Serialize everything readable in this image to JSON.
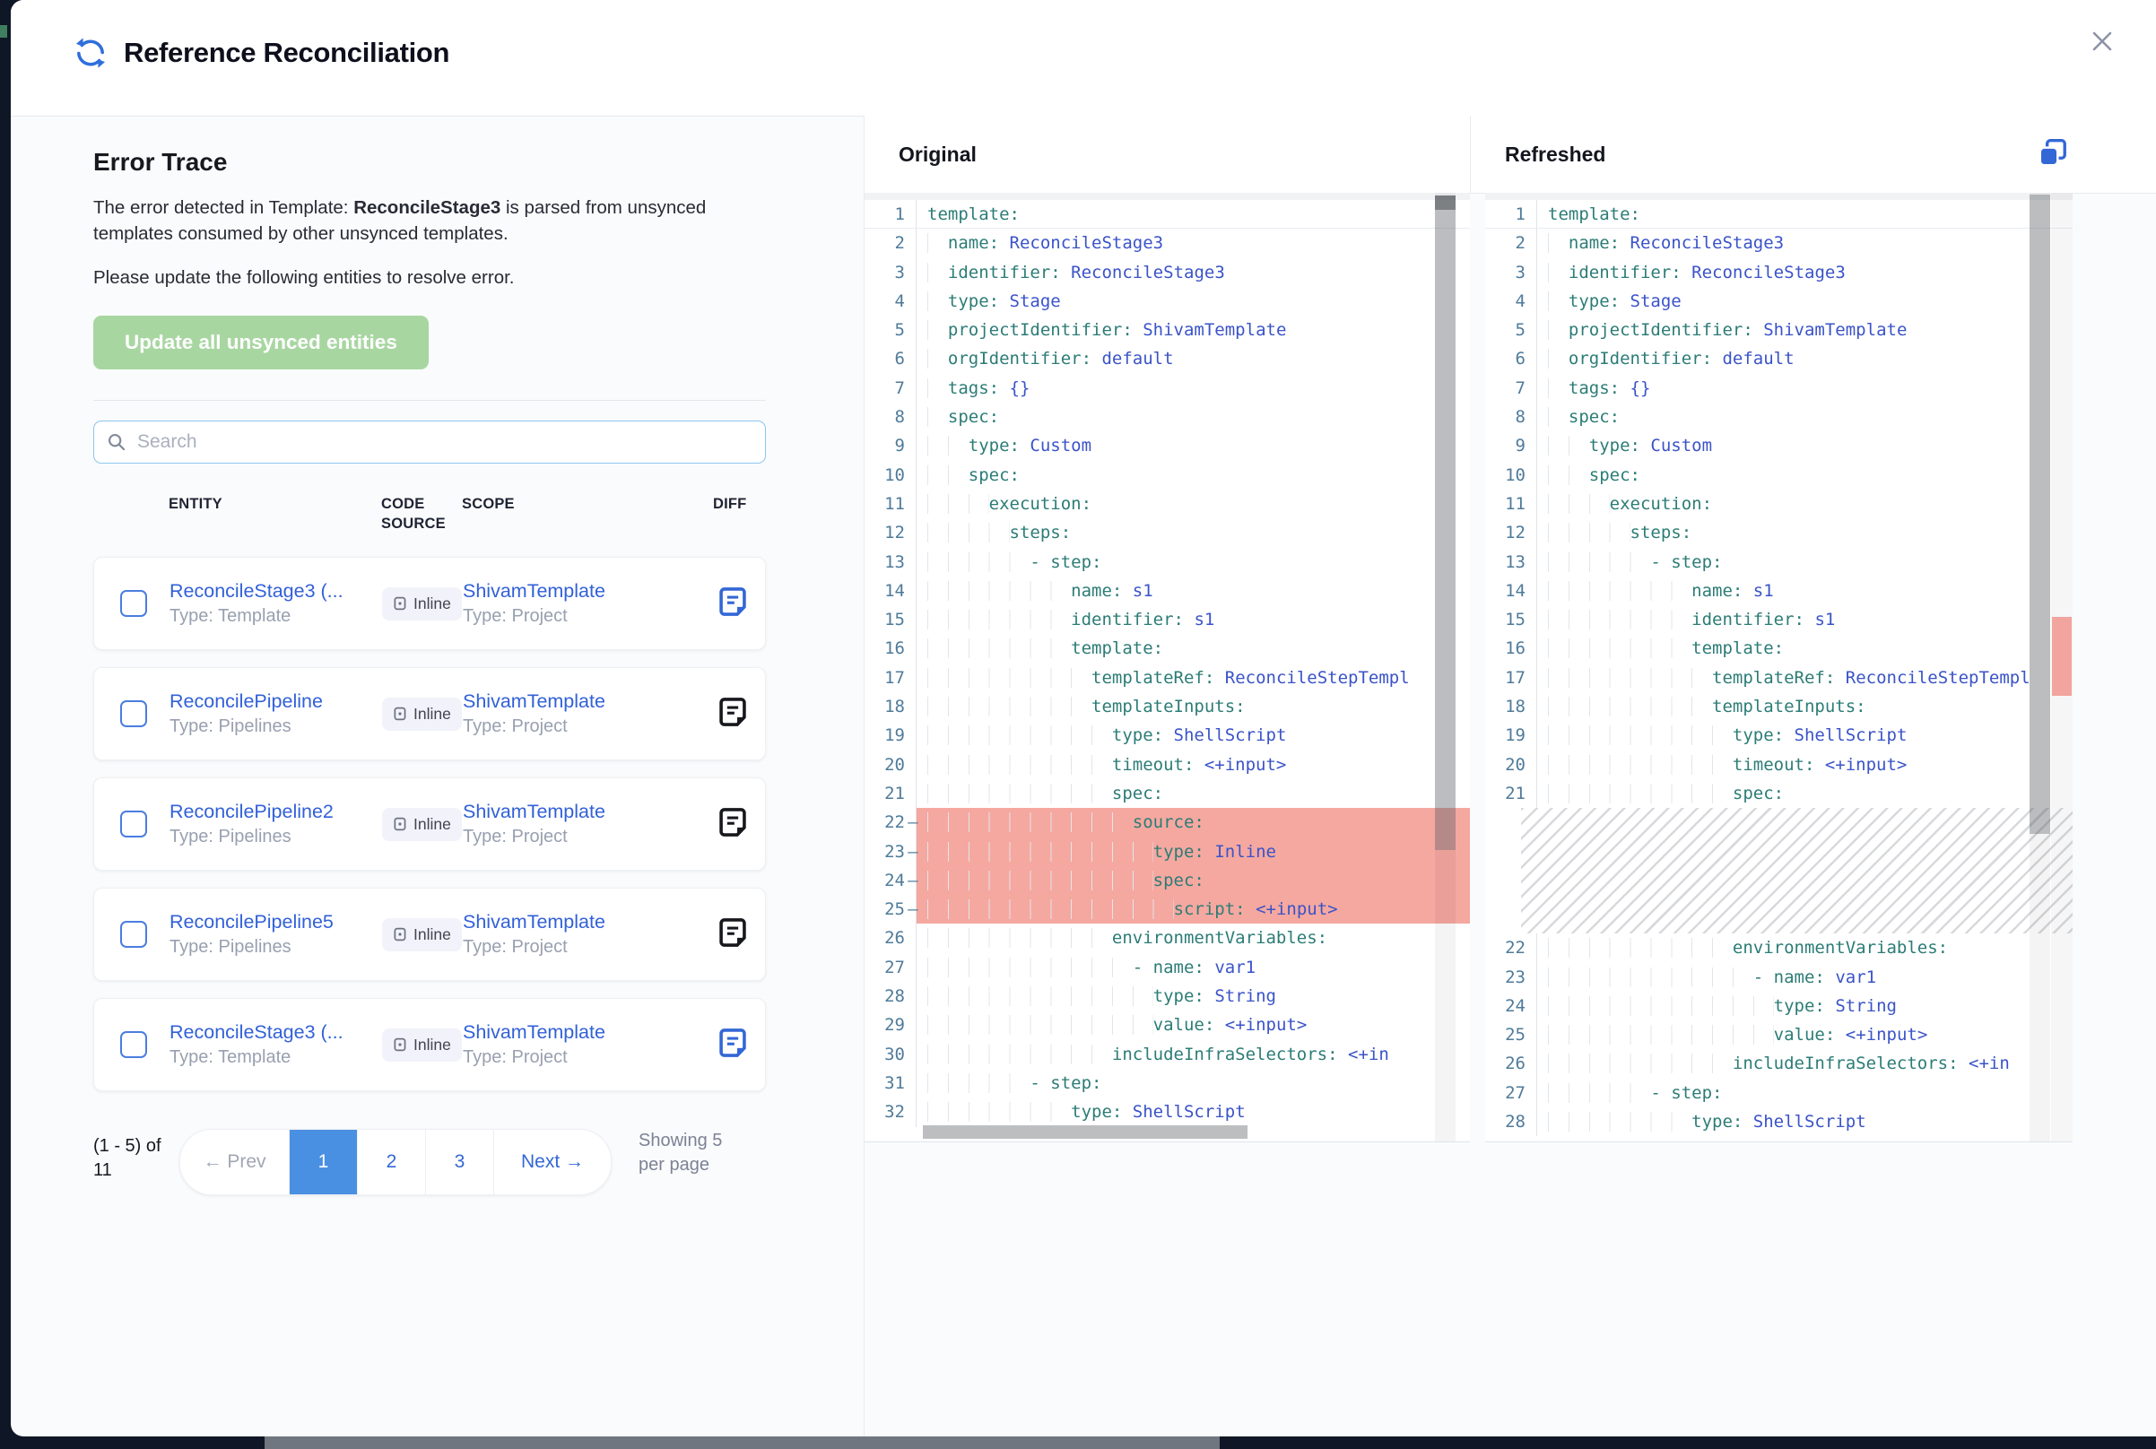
{
  "window": {
    "title": "Reference Reconciliation"
  },
  "error_trace": {
    "title": "Error Trace",
    "description_prefix": "The error detected in Template: ",
    "description_bold": "ReconcileStage3",
    "description_suffix": " is parsed from unsynced templates consumed by other unsynced templates.",
    "description_line2": "Please update the following entities to resolve error.",
    "update_button_label": "Update all unsynced entities"
  },
  "search": {
    "placeholder": "Search"
  },
  "table": {
    "headers": [
      "ENTITY",
      "CODE SOURCE",
      "SCOPE",
      "DIFF"
    ],
    "rows": [
      {
        "entity": "ReconcileStage3 (...",
        "entity_type": "Type: Template",
        "code_source": "Inline",
        "scope": "ShivamTemplate",
        "scope_type": "Type: Project",
        "diff_color": "blue"
      },
      {
        "entity": "ReconcilePipeline",
        "entity_type": "Type: Pipelines",
        "code_source": "Inline",
        "scope": "ShivamTemplate",
        "scope_type": "Type: Project",
        "diff_color": "dark"
      },
      {
        "entity": "ReconcilePipeline2",
        "entity_type": "Type: Pipelines",
        "code_source": "Inline",
        "scope": "ShivamTemplate",
        "scope_type": "Type: Project",
        "diff_color": "dark"
      },
      {
        "entity": "ReconcilePipeline5",
        "entity_type": "Type: Pipelines",
        "code_source": "Inline",
        "scope": "ShivamTemplate",
        "scope_type": "Type: Project",
        "diff_color": "dark"
      },
      {
        "entity": "ReconcileStage3 (...",
        "entity_type": "Type: Template",
        "code_source": "Inline",
        "scope": "ShivamTemplate",
        "scope_type": "Type: Project",
        "diff_color": "blue"
      }
    ]
  },
  "pagination": {
    "range_text": "(1 - 5) of 11",
    "prev_label": "← Prev",
    "pages": [
      "1",
      "2",
      "3"
    ],
    "active_page": "1",
    "next_label": "Next →",
    "per_page_text": "Showing 5 per page"
  },
  "diff": {
    "original": {
      "title": "Original",
      "deleted_lines": [
        22,
        23,
        24,
        25
      ],
      "lines": [
        "template:",
        "  name: ReconcileStage3",
        "  identifier: ReconcileStage3",
        "  type: Stage",
        "  projectIdentifier: ShivamTemplate",
        "  orgIdentifier: default",
        "  tags: {}",
        "  spec:",
        "    type: Custom",
        "    spec:",
        "      execution:",
        "        steps:",
        "          - step:",
        "              name: s1",
        "              identifier: s1",
        "              template:",
        "                templateRef: ReconcileStepTempl",
        "                templateInputs:",
        "                  type: ShellScript",
        "                  timeout: <+input>",
        "                  spec:",
        "                    source:",
        "                      type: Inline",
        "                      spec:",
        "                        script: <+input>",
        "                  environmentVariables:",
        "                    - name: var1",
        "                      type: String",
        "                      value: <+input>",
        "                  includeInfraSelectors: <+in",
        "          - step:",
        "              type: ShellScript"
      ]
    },
    "refreshed": {
      "title": "Refreshed",
      "gap_after_line": 21,
      "gap_rows": 4,
      "lines": [
        "template:",
        "  name: ReconcileStage3",
        "  identifier: ReconcileStage3",
        "  type: Stage",
        "  projectIdentifier: ShivamTemplate",
        "  orgIdentifier: default",
        "  tags: {}",
        "  spec:",
        "    type: Custom",
        "    spec:",
        "      execution:",
        "        steps:",
        "          - step:",
        "              name: s1",
        "              identifier: s1",
        "              template:",
        "                templateRef: ReconcileStepTempl",
        "                templateInputs:",
        "                  type: ShellScript",
        "                  timeout: <+input>",
        "                  spec:",
        "                  environmentVariables:",
        "                    - name: var1",
        "                      type: String",
        "                      value: <+input>",
        "                  includeInfraSelectors: <+in",
        "          - step:",
        "              type: ShellScript"
      ]
    }
  },
  "colors": {
    "accent_blue": "#3367d6",
    "active_page_blue": "#4a90e2",
    "link_blue": "#3160d8",
    "button_green": "#a8d6a1",
    "yaml_key_teal": "#2c7c76",
    "yaml_value_blue": "#3a53c8",
    "line_number": "#4f7b9a",
    "deleted_row_bg": "#f5a8a0",
    "ruler_marker_red": "#f2a49e",
    "underlay_navy": "#0f1625"
  }
}
